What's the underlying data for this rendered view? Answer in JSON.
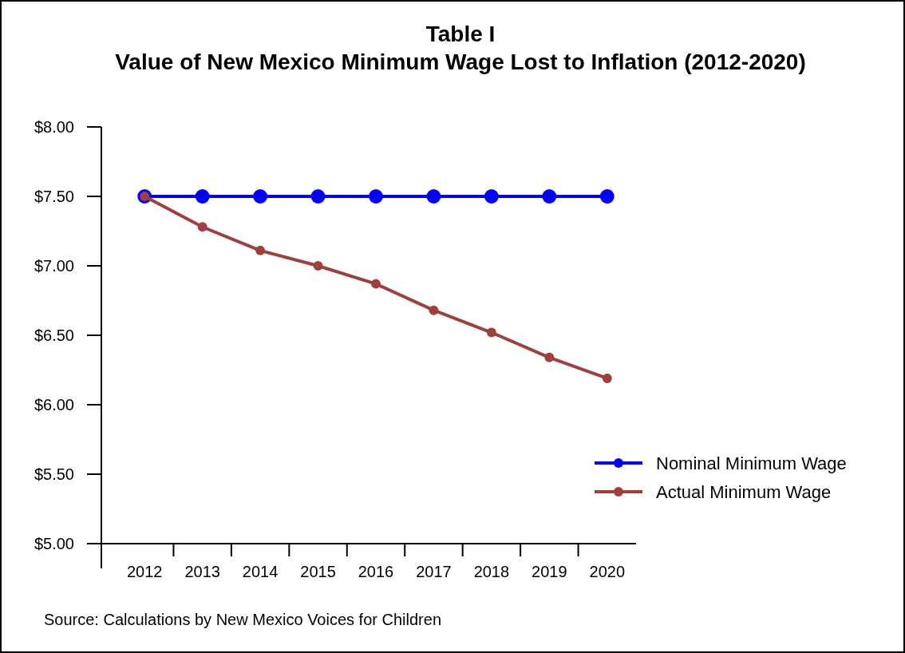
{
  "chart_data": {
    "type": "line",
    "title": "Table I\nValue of New Mexico Minimum Wage Lost to Inflation (2012-2020)",
    "categories": [
      "2012",
      "2013",
      "2014",
      "2015",
      "2016",
      "2017",
      "2018",
      "2019",
      "2020"
    ],
    "series": [
      {
        "name": "Nominal Minimum Wage",
        "color": "#0000ff",
        "values": [
          7.5,
          7.5,
          7.5,
          7.5,
          7.5,
          7.5,
          7.5,
          7.5,
          7.5
        ]
      },
      {
        "name": "Actual Minimum Wage",
        "color": "#a0403c",
        "values": [
          7.5,
          7.28,
          7.11,
          7.0,
          6.87,
          6.68,
          6.52,
          6.34,
          6.19
        ]
      }
    ],
    "ylim": [
      5,
      8
    ],
    "yticks": [
      {
        "value": 5,
        "label": "$5.00"
      },
      {
        "value": 5.5,
        "label": "$5.50"
      },
      {
        "value": 6,
        "label": "$6.00"
      },
      {
        "value": 6.5,
        "label": "$6.50"
      },
      {
        "value": 7,
        "label": "$7.00"
      },
      {
        "value": 7.5,
        "label": "$7.50"
      },
      {
        "value": 8,
        "label": "$8.00"
      }
    ],
    "legend": "right",
    "marker": "circle",
    "line_style": "solid",
    "grid": false,
    "annotations": [
      "Source: Calculations by New Mexico Voices for Children"
    ]
  }
}
